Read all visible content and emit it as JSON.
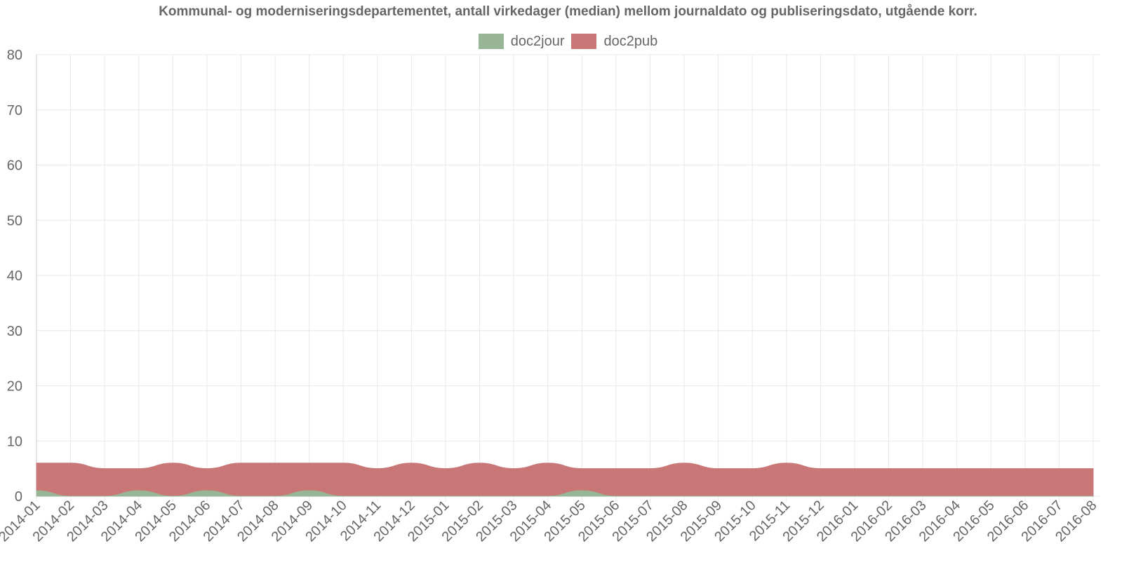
{
  "chart_data": {
    "type": "area",
    "title": "Kommunal- og moderniseringsdepartementet, antall virkedager (median) mellom journaldato og publiseringsdato, utgående korr.",
    "xlabel": "",
    "ylabel": "",
    "ylim": [
      0,
      80
    ],
    "yticks": [
      0,
      10,
      20,
      30,
      40,
      50,
      60,
      70,
      80
    ],
    "grid": true,
    "legend_position": "top",
    "stacked": true,
    "categories": [
      "2014-01",
      "2014-02",
      "2014-03",
      "2014-04",
      "2014-05",
      "2014-06",
      "2014-07",
      "2014-08",
      "2014-09",
      "2014-10",
      "2014-11",
      "2014-12",
      "2015-01",
      "2015-02",
      "2015-03",
      "2015-04",
      "2015-05",
      "2015-06",
      "2015-07",
      "2015-08",
      "2015-09",
      "2015-10",
      "2015-11",
      "2015-12",
      "2016-01",
      "2016-02",
      "2016-03",
      "2016-04",
      "2016-05",
      "2016-06",
      "2016-07",
      "2016-08"
    ],
    "series": [
      {
        "name": "doc2jour",
        "color": "#98b595",
        "values": [
          1,
          0,
          0,
          1,
          0,
          1,
          0,
          0,
          1,
          0,
          0,
          0,
          0,
          0,
          0,
          0,
          1,
          0,
          0,
          0,
          0,
          0,
          0,
          0,
          0,
          0,
          0,
          0,
          0,
          0,
          0,
          0
        ]
      },
      {
        "name": "doc2pub",
        "color": "#c87676",
        "values": [
          5,
          6,
          5,
          4,
          6,
          4,
          6,
          6,
          5,
          6,
          5,
          6,
          5,
          6,
          5,
          6,
          4,
          5,
          5,
          6,
          5,
          5,
          6,
          5,
          5,
          5,
          5,
          5,
          5,
          5,
          5,
          5
        ]
      }
    ]
  }
}
